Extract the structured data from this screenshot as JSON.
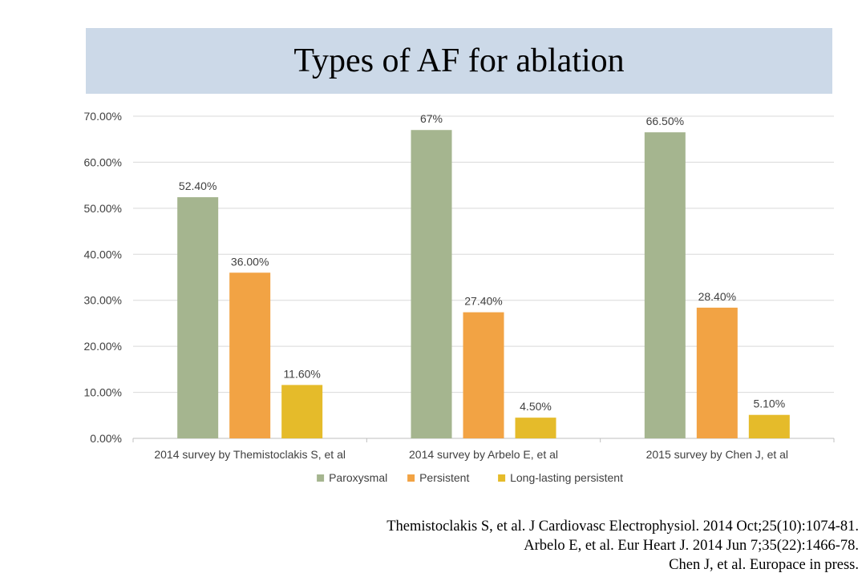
{
  "slide": {
    "title": "Types of AF for ablation",
    "references": [
      "Themistoclakis S, et al. J Cardiovasc Electrophysiol. 2014 Oct;25(10):1074-81.",
      "Arbelo E, et al. Eur Heart J. 2014 Jun 7;35(22):1466-78.",
      "Chen J, et al. Europace in press."
    ]
  },
  "chart_data": {
    "type": "bar",
    "title": "",
    "xlabel": "",
    "ylabel": "",
    "categories": [
      "2014 survey by Themistoclakis S, et al",
      "2014 survey by Arbelo E, et al",
      "2015 survey by Chen J, et al"
    ],
    "series": [
      {
        "name": "Paroxysmal",
        "values": [
          52.4,
          67,
          66.5
        ],
        "labels": [
          "52.40%",
          "67%",
          "66.50%"
        ],
        "color": "#a5b58f"
      },
      {
        "name": "Persistent",
        "values": [
          36.0,
          27.4,
          28.4
        ],
        "labels": [
          "36.00%",
          "27.40%",
          "28.40%"
        ],
        "color": "#f2a344"
      },
      {
        "name": "Long-lasting persistent",
        "values": [
          11.6,
          4.5,
          5.1
        ],
        "labels": [
          "11.60%",
          "4.50%",
          "5.10%"
        ],
        "color": "#e5bb2a"
      }
    ],
    "ylim": [
      0,
      70
    ],
    "yticks": [
      "0.00%",
      "10.00%",
      "20.00%",
      "30.00%",
      "40.00%",
      "50.00%",
      "60.00%",
      "70.00%"
    ],
    "grid": true,
    "legend": "bottom",
    "gridline_color": "#d9d9d9",
    "text_color": "#404040"
  }
}
